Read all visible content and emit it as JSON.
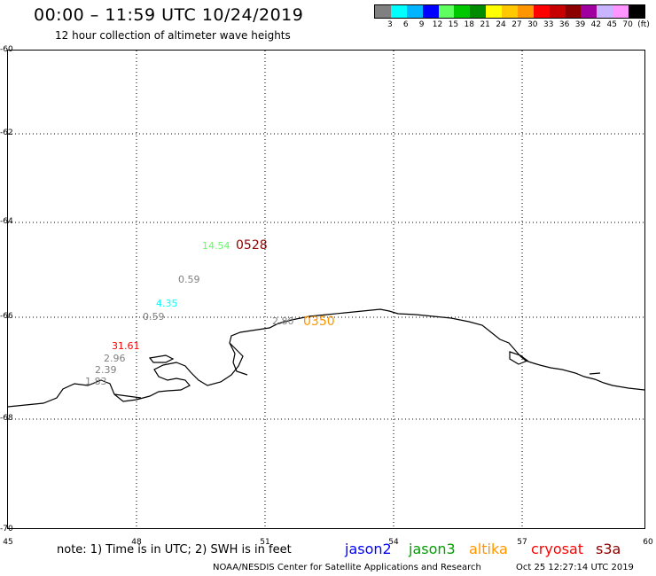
{
  "header": {
    "title": "00:00 – 11:59 UTC 10/24/2019",
    "subtitle": "12 hour collection of altimeter wave heights"
  },
  "color_scale": {
    "colors": [
      "#808080",
      "#00ffff",
      "#00b4ff",
      "#0000ff",
      "#60ff60",
      "#00c800",
      "#008c00",
      "#ffff00",
      "#ffc800",
      "#ff9600",
      "#ff0000",
      "#c80000",
      "#8c0000",
      "#a000a0",
      "#c8b4ff",
      "#ff96ff",
      "#000000"
    ],
    "labels": [
      "3",
      "6",
      "9",
      "12",
      "15",
      "18",
      "21",
      "24",
      "27",
      "30",
      "33",
      "36",
      "39",
      "42",
      "45",
      "70"
    ],
    "unit": "(ft)"
  },
  "axes": {
    "y_labels": [
      "-60",
      "-62",
      "-64",
      "-66",
      "-68",
      "-70"
    ],
    "x_labels": [
      "45",
      "48",
      "51",
      "54",
      "57",
      "60"
    ]
  },
  "observations": [
    {
      "text": "14.54",
      "color": "#60ff60"
    },
    {
      "text": "0528",
      "color": "#8c0000"
    },
    {
      "text": "0.59",
      "color": "#808080"
    },
    {
      "text": "4.35",
      "color": "#00ffff"
    },
    {
      "text": "0.59",
      "color": "#808080"
    },
    {
      "text": "2.80",
      "color": "#808080"
    },
    {
      "text": "0350",
      "color": "#ff9600"
    },
    {
      "text": "31.61",
      "color": "#ff0000"
    },
    {
      "text": "2.96",
      "color": "#808080"
    },
    {
      "text": "2.39",
      "color": "#808080"
    },
    {
      "text": "1.83",
      "color": "#808080"
    }
  ],
  "footer": {
    "note": "note: 1) Time is in UTC; 2) SWH is in feet",
    "satellites": [
      {
        "name": "jason2",
        "color": "#0000ff"
      },
      {
        "name": "jason3",
        "color": "#00a000"
      },
      {
        "name": "altika",
        "color": "#ff9600"
      },
      {
        "name": "cryosat",
        "color": "#ff0000"
      },
      {
        "name": "s3a",
        "color": "#8c0000"
      }
    ],
    "credit": "NOAA/NESDIS Center for Satellite Applications and Research",
    "timestamp": "Oct 25 12:27:14 UTC 2019"
  }
}
